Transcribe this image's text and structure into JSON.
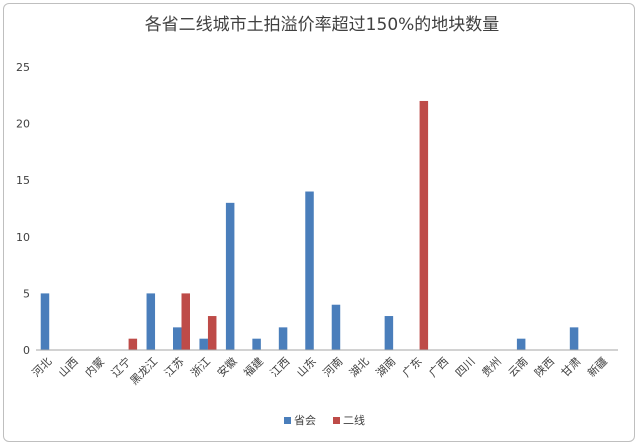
{
  "chart_data": {
    "type": "bar",
    "title": "各省二线城市土拍溢价率超过150%的地块数量",
    "xlabel": "",
    "ylabel": "",
    "ylim": [
      0,
      25
    ],
    "yticks": [
      0,
      5,
      10,
      15,
      20,
      25
    ],
    "grid": false,
    "legend_position": "bottom",
    "categories": [
      "河北",
      "山西",
      "内蒙",
      "辽宁",
      "黑龙江",
      "江苏",
      "浙江",
      "安徽",
      "福建",
      "江西",
      "山东",
      "河南",
      "湖北",
      "湖南",
      "广东",
      "广西",
      "四川",
      "贵州",
      "云南",
      "陕西",
      "甘肃",
      "新疆"
    ],
    "series": [
      {
        "name": "省会",
        "color": "#4a7ebb",
        "values": [
          5,
          0,
          0,
          0,
          5,
          2,
          1,
          13,
          1,
          2,
          14,
          4,
          0,
          3,
          0,
          0,
          0,
          0,
          1,
          0,
          2,
          0
        ]
      },
      {
        "name": "二线",
        "color": "#be4b48",
        "values": [
          0,
          0,
          0,
          1,
          0,
          5,
          3,
          0,
          0,
          0,
          0,
          0,
          0,
          0,
          22,
          0,
          0,
          0,
          0,
          0,
          0,
          0
        ]
      }
    ]
  }
}
